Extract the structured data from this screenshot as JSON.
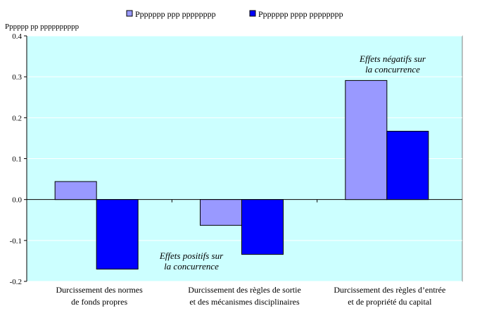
{
  "chart_data": {
    "type": "bar",
    "ylabel": "Pppppp pp pppppppppp",
    "ylim": [
      -0.2,
      0.4
    ],
    "yticks": [
      "0.4",
      "0.3",
      "0.2",
      "0.1",
      "0.0",
      "-0.1",
      "-0.2"
    ],
    "ytick_values": [
      0.4,
      0.3,
      0.2,
      0.1,
      0.0,
      -0.1,
      -0.2
    ],
    "categories": [
      [
        "Durcissement des normes",
        "de fonds propres"
      ],
      [
        "Durcissement des règles de sortie",
        "et des mécanismes disciplinaires"
      ],
      [
        "Durcissement des règles d’entrée",
        "et de propriété du capital"
      ]
    ],
    "series": [
      {
        "name": "Ppppppp ppp pppppppp",
        "color": "#9999FF",
        "values": [
          0.044,
          -0.063,
          0.291
        ]
      },
      {
        "name": "Ppppppp pppp pppppppp",
        "color": "#0000FF",
        "values": [
          -0.17,
          -0.134,
          0.167
        ]
      }
    ],
    "annotations": [
      {
        "id": "neg",
        "lines": [
          "Effets négatifs sur",
          "la concurrence"
        ]
      },
      {
        "id": "pos",
        "lines": [
          "Effets positifs sur",
          "la concurrence"
        ]
      }
    ],
    "plot_background": "#CCFFFF",
    "grid": true,
    "legend_position": "top"
  }
}
